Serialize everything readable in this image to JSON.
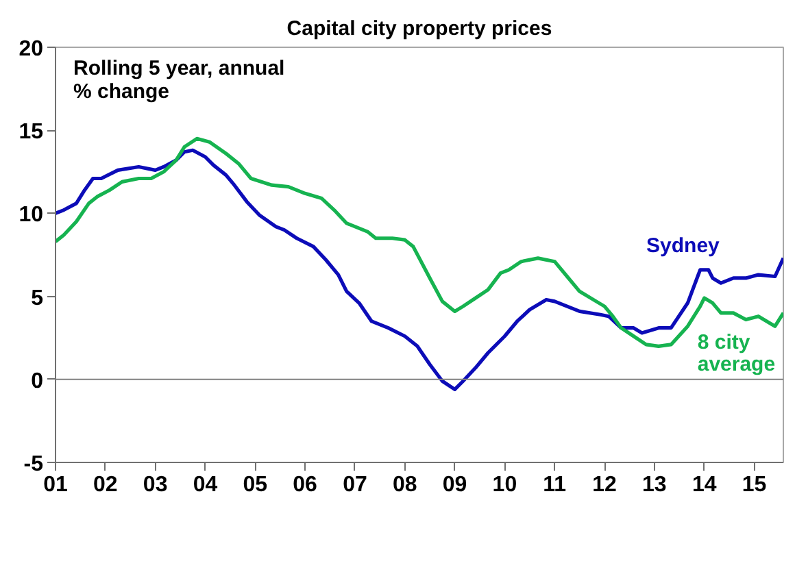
{
  "chart_data": {
    "type": "line",
    "title": "Capital city property prices",
    "annotations": [
      "Rolling 5 year, annual % change"
    ],
    "xlim": [
      "2001-01",
      "2015-08"
    ],
    "xticks": [
      {
        "value": "2001-01",
        "label": "01"
      },
      {
        "value": "2002-01",
        "label": "02"
      },
      {
        "value": "2003-01",
        "label": "03"
      },
      {
        "value": "2004-01",
        "label": "04"
      },
      {
        "value": "2005-01",
        "label": "05"
      },
      {
        "value": "2006-01",
        "label": "06"
      },
      {
        "value": "2007-01",
        "label": "07"
      },
      {
        "value": "2008-01",
        "label": "08"
      },
      {
        "value": "2009-01",
        "label": "09"
      },
      {
        "value": "2010-01",
        "label": "10"
      },
      {
        "value": "2011-01",
        "label": "11"
      },
      {
        "value": "2012-01",
        "label": "12"
      },
      {
        "value": "2013-01",
        "label": "13"
      },
      {
        "value": "2014-01",
        "label": "14"
      },
      {
        "value": "2015-01",
        "label": "15"
      }
    ],
    "ylim": [
      -5,
      20
    ],
    "yticks": [
      -5,
      0,
      5,
      10,
      15,
      20
    ],
    "grid": false,
    "ref_lines": [
      {
        "axis": "y",
        "value": 0,
        "color": "#808080"
      }
    ],
    "series": [
      {
        "name": "Sydney",
        "color": "#0c0cb8",
        "x": [
          "2001-01",
          "2001-03",
          "2001-06",
          "2001-08",
          "2001-10",
          "2001-12",
          "2002-04",
          "2002-09",
          "2003-01",
          "2003-03",
          "2003-06",
          "2003-08",
          "2003-10",
          "2004-01",
          "2004-03",
          "2004-06",
          "2004-08",
          "2004-11",
          "2005-02",
          "2005-06",
          "2005-08",
          "2005-11",
          "2006-03",
          "2006-06",
          "2006-09",
          "2006-11",
          "2007-02",
          "2007-05",
          "2007-09",
          "2008-01",
          "2008-04",
          "2008-07",
          "2008-10",
          "2009-01",
          "2009-03",
          "2009-06",
          "2009-09",
          "2010-01",
          "2010-04",
          "2010-07",
          "2010-11",
          "2011-01",
          "2011-04",
          "2011-07",
          "2011-12",
          "2012-02",
          "2012-05",
          "2012-08",
          "2012-10",
          "2013-02",
          "2013-05",
          "2013-09",
          "2013-12",
          "2014-02",
          "2014-03",
          "2014-05",
          "2014-08",
          "2014-11",
          "2015-02",
          "2015-06",
          "2015-08"
        ],
        "values": [
          10.0,
          10.2,
          10.6,
          11.4,
          12.1,
          12.1,
          12.6,
          12.8,
          12.6,
          12.8,
          13.2,
          13.7,
          13.8,
          13.4,
          12.9,
          12.3,
          11.7,
          10.7,
          9.9,
          9.2,
          9.0,
          8.5,
          8.0,
          7.2,
          6.3,
          5.3,
          4.6,
          3.5,
          3.1,
          2.6,
          2.0,
          0.9,
          -0.1,
          -0.6,
          -0.1,
          0.7,
          1.6,
          2.6,
          3.5,
          4.2,
          4.8,
          4.7,
          4.4,
          4.1,
          3.9,
          3.8,
          3.1,
          3.1,
          2.8,
          3.1,
          3.1,
          4.6,
          6.6,
          6.6,
          6.1,
          5.8,
          6.1,
          6.1,
          6.3,
          6.2,
          7.3
        ]
      },
      {
        "name": "8 city average",
        "color": "#16b350",
        "x": [
          "2001-01",
          "2001-03",
          "2001-06",
          "2001-09",
          "2001-11",
          "2002-02",
          "2002-05",
          "2002-09",
          "2002-12",
          "2003-03",
          "2003-06",
          "2003-08",
          "2003-11",
          "2004-02",
          "2004-06",
          "2004-09",
          "2004-12",
          "2005-05",
          "2005-09",
          "2006-01",
          "2006-05",
          "2006-08",
          "2006-11",
          "2007-04",
          "2007-06",
          "2007-10",
          "2008-01",
          "2008-03",
          "2008-07",
          "2008-10",
          "2009-01",
          "2009-03",
          "2009-06",
          "2009-09",
          "2009-12",
          "2010-02",
          "2010-05",
          "2010-09",
          "2011-01",
          "2011-04",
          "2011-07",
          "2011-11",
          "2012-01",
          "2012-03",
          "2012-05",
          "2012-08",
          "2012-11",
          "2013-02",
          "2013-05",
          "2013-09",
          "2013-12",
          "2014-01",
          "2014-03",
          "2014-05",
          "2014-08",
          "2014-11",
          "2015-02",
          "2015-06",
          "2015-08"
        ],
        "values": [
          8.3,
          8.7,
          9.5,
          10.6,
          11.0,
          11.4,
          11.9,
          12.1,
          12.1,
          12.5,
          13.2,
          14.0,
          14.5,
          14.3,
          13.6,
          13.0,
          12.1,
          11.7,
          11.6,
          11.2,
          10.9,
          10.2,
          9.4,
          8.9,
          8.5,
          8.5,
          8.4,
          8.0,
          6.1,
          4.7,
          4.1,
          4.4,
          4.9,
          5.4,
          6.4,
          6.6,
          7.1,
          7.3,
          7.1,
          6.2,
          5.3,
          4.7,
          4.4,
          3.8,
          3.1,
          2.6,
          2.1,
          2.0,
          2.1,
          3.2,
          4.4,
          4.9,
          4.6,
          4.0,
          4.0,
          3.6,
          3.8,
          3.2,
          4.0
        ]
      }
    ]
  }
}
